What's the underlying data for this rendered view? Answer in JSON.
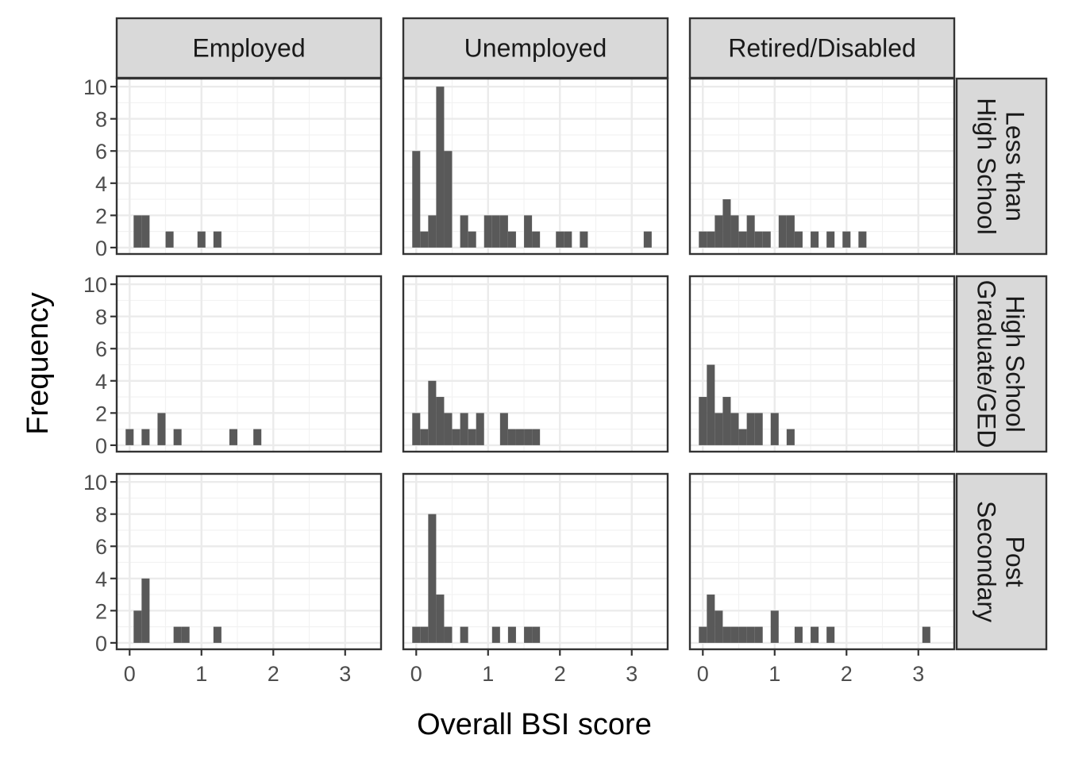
{
  "chart_data": {
    "type": "bar",
    "chart_kind": "faceted histogram",
    "xlabel": "Overall BSI score",
    "ylabel": "Frequency",
    "xlim": [
      -0.18,
      3.5
    ],
    "ylim": [
      -0.4,
      10.5
    ],
    "x_ticks": [
      0,
      1,
      2,
      3
    ],
    "y_ticks": [
      0,
      2,
      4,
      6,
      8,
      10
    ],
    "bin_width": 0.111,
    "grid": true,
    "bar_color": "#595959",
    "strip_color": "#d9d9d9",
    "columns": [
      "Employed",
      "Unemployed",
      "Retired/Disabled"
    ],
    "rows": [
      [
        "Less than",
        "High School"
      ],
      [
        "High School",
        "Graduate/GED"
      ],
      [
        "Post",
        "Secondary"
      ]
    ],
    "panels": [
      {
        "row": 0,
        "col": 0,
        "bins": [
          [
            0.111,
            2
          ],
          [
            0.222,
            2
          ],
          [
            0.556,
            1
          ],
          [
            1.0,
            1
          ],
          [
            1.222,
            1
          ]
        ]
      },
      {
        "row": 0,
        "col": 1,
        "bins": [
          [
            0.0,
            6
          ],
          [
            0.111,
            1
          ],
          [
            0.222,
            2
          ],
          [
            0.333,
            10
          ],
          [
            0.444,
            6
          ],
          [
            0.667,
            2
          ],
          [
            0.778,
            1
          ],
          [
            1.0,
            2
          ],
          [
            1.111,
            2
          ],
          [
            1.222,
            2
          ],
          [
            1.333,
            1
          ],
          [
            1.556,
            2
          ],
          [
            1.667,
            1
          ],
          [
            2.0,
            1
          ],
          [
            2.111,
            1
          ],
          [
            2.333,
            1
          ],
          [
            3.222,
            1
          ]
        ]
      },
      {
        "row": 0,
        "col": 2,
        "bins": [
          [
            0.0,
            1
          ],
          [
            0.111,
            1
          ],
          [
            0.222,
            2
          ],
          [
            0.333,
            3
          ],
          [
            0.444,
            2
          ],
          [
            0.556,
            1
          ],
          [
            0.667,
            2
          ],
          [
            0.778,
            1
          ],
          [
            0.889,
            1
          ],
          [
            1.111,
            2
          ],
          [
            1.222,
            2
          ],
          [
            1.333,
            1
          ],
          [
            1.556,
            1
          ],
          [
            1.778,
            1
          ],
          [
            2.0,
            1
          ],
          [
            2.222,
            1
          ]
        ]
      },
      {
        "row": 1,
        "col": 0,
        "bins": [
          [
            0.0,
            1
          ],
          [
            0.222,
            1
          ],
          [
            0.444,
            2
          ],
          [
            0.667,
            1
          ],
          [
            1.444,
            1
          ],
          [
            1.778,
            1
          ]
        ]
      },
      {
        "row": 1,
        "col": 1,
        "bins": [
          [
            0.0,
            2
          ],
          [
            0.111,
            1
          ],
          [
            0.222,
            4
          ],
          [
            0.333,
            3
          ],
          [
            0.444,
            2
          ],
          [
            0.556,
            1
          ],
          [
            0.667,
            2
          ],
          [
            0.778,
            1
          ],
          [
            0.889,
            2
          ],
          [
            1.222,
            2
          ],
          [
            1.333,
            1
          ],
          [
            1.444,
            1
          ],
          [
            1.556,
            1
          ],
          [
            1.667,
            1
          ]
        ]
      },
      {
        "row": 1,
        "col": 2,
        "bins": [
          [
            0.0,
            3
          ],
          [
            0.111,
            5
          ],
          [
            0.222,
            2
          ],
          [
            0.333,
            3
          ],
          [
            0.444,
            2
          ],
          [
            0.556,
            1
          ],
          [
            0.667,
            2
          ],
          [
            0.778,
            2
          ],
          [
            1.0,
            2
          ],
          [
            1.222,
            1
          ]
        ]
      },
      {
        "row": 2,
        "col": 0,
        "bins": [
          [
            0.111,
            2
          ],
          [
            0.222,
            4
          ],
          [
            0.667,
            1
          ],
          [
            0.778,
            1
          ],
          [
            1.222,
            1
          ]
        ]
      },
      {
        "row": 2,
        "col": 1,
        "bins": [
          [
            0.0,
            1
          ],
          [
            0.111,
            1
          ],
          [
            0.222,
            8
          ],
          [
            0.333,
            3
          ],
          [
            0.444,
            1
          ],
          [
            0.667,
            1
          ],
          [
            1.111,
            1
          ],
          [
            1.333,
            1
          ],
          [
            1.556,
            1
          ],
          [
            1.667,
            1
          ]
        ]
      },
      {
        "row": 2,
        "col": 2,
        "bins": [
          [
            0.0,
            1
          ],
          [
            0.111,
            3
          ],
          [
            0.222,
            2
          ],
          [
            0.333,
            1
          ],
          [
            0.444,
            1
          ],
          [
            0.556,
            1
          ],
          [
            0.667,
            1
          ],
          [
            0.778,
            1
          ],
          [
            1.0,
            2
          ],
          [
            1.333,
            1
          ],
          [
            1.556,
            1
          ],
          [
            1.778,
            1
          ],
          [
            3.111,
            1
          ]
        ]
      }
    ]
  }
}
